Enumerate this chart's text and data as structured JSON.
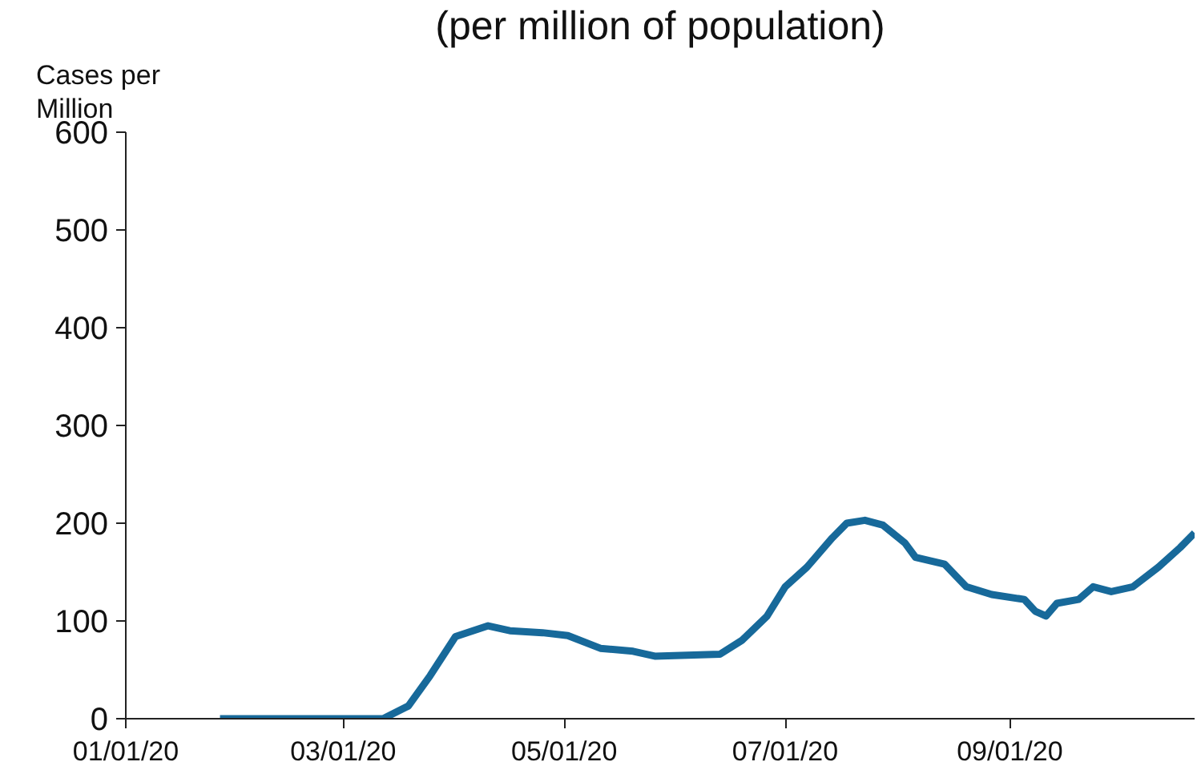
{
  "chart_data": {
    "type": "line",
    "title": "(per million of population)",
    "ylabel": "Cases per\nMillion",
    "x": [
      "2020-01-27",
      "2020-03-12",
      "2020-03-19",
      "2020-03-25",
      "2020-04-01",
      "2020-04-10",
      "2020-04-16",
      "2020-04-25",
      "2020-05-02",
      "2020-05-11",
      "2020-05-20",
      "2020-05-26",
      "2020-06-04",
      "2020-06-13",
      "2020-06-19",
      "2020-06-26",
      "2020-07-01",
      "2020-07-07",
      "2020-07-14",
      "2020-07-18",
      "2020-07-23",
      "2020-07-28",
      "2020-08-03",
      "2020-08-06",
      "2020-08-14",
      "2020-08-20",
      "2020-08-27",
      "2020-09-05",
      "2020-09-08",
      "2020-09-11",
      "2020-09-14",
      "2020-09-20",
      "2020-09-24",
      "2020-09-29",
      "2020-10-05",
      "2020-10-12",
      "2020-10-18",
      "2020-10-22"
    ],
    "series": [
      {
        "color": "#17699a",
        "values": [
          0,
          0,
          13,
          44,
          84,
          95,
          90,
          88,
          85,
          72,
          69,
          64,
          65,
          66,
          80,
          105,
          135,
          155,
          185,
          200,
          203,
          198,
          180,
          165,
          158,
          135,
          127,
          122,
          110,
          105,
          118,
          122,
          135,
          130,
          135,
          155,
          175,
          190
        ]
      }
    ],
    "xlim": [
      "2020-01-01",
      "2020-10-22"
    ],
    "xticks": [
      {
        "value": "2020-01-01",
        "label": "01/01/20"
      },
      {
        "value": "2020-03-01",
        "label": "03/01/20"
      },
      {
        "value": "2020-05-01",
        "label": "05/01/20"
      },
      {
        "value": "2020-07-01",
        "label": "07/01/20"
      },
      {
        "value": "2020-09-01",
        "label": "09/01/20"
      }
    ],
    "ylim": [
      0,
      600
    ],
    "yticks": [
      0,
      100,
      200,
      300,
      400,
      500,
      600
    ],
    "grid": false,
    "marker": "none",
    "line_style": "solid"
  }
}
